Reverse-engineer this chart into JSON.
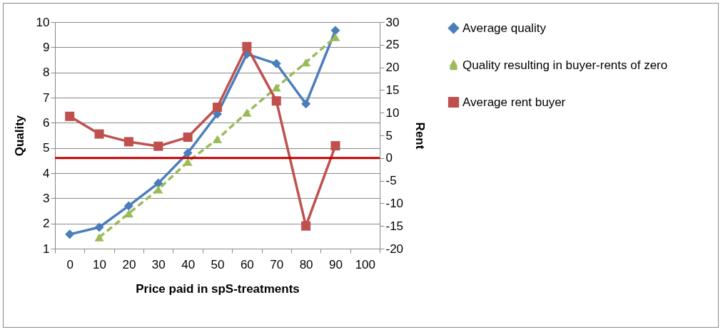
{
  "chart_data": {
    "type": "line",
    "xlabel": "Price paid in spS-treatments",
    "ylabel": "Quality",
    "y2label": "Rent",
    "categories": [
      "0",
      "10",
      "20",
      "30",
      "40",
      "50",
      "60",
      "70",
      "80",
      "90",
      "100"
    ],
    "series": [
      {
        "name": "Average quality",
        "color": "#4a7ebb",
        "marker": "diamond",
        "line_style": "solid",
        "values": [
          1.57,
          1.85,
          2.7,
          3.6,
          4.8,
          6.35,
          8.73,
          8.35,
          6.75,
          9.67,
          null
        ]
      },
      {
        "name": "Quality resulting in buyer-rents of zero",
        "color": "#9bbb59",
        "marker": "triangle",
        "line_style": "dashed",
        "values": [
          null,
          1.45,
          2.4,
          3.35,
          4.45,
          5.35,
          6.4,
          7.4,
          8.4,
          9.4,
          null
        ]
      },
      {
        "name": "Average rent buyer",
        "color": "#c0504d",
        "marker": "square",
        "line_style": "solid",
        "axis": "y2",
        "values": [
          9.2,
          5.3,
          3.6,
          2.6,
          4.6,
          11.2,
          24.6,
          12.6,
          -15.0,
          2.7,
          null
        ]
      }
    ],
    "ref_lines": [
      {
        "axis": "y2",
        "value": 0,
        "color": "#c00000"
      }
    ],
    "ylim": [
      1,
      10
    ],
    "yticks": [
      1,
      2,
      3,
      4,
      5,
      6,
      7,
      8,
      9,
      10
    ],
    "y2lim": [
      -20,
      30
    ],
    "y2ticks": [
      -20,
      -15,
      -10,
      -5,
      0,
      5,
      10,
      15,
      20,
      25,
      30
    ],
    "grid": "y",
    "legend": "right"
  }
}
